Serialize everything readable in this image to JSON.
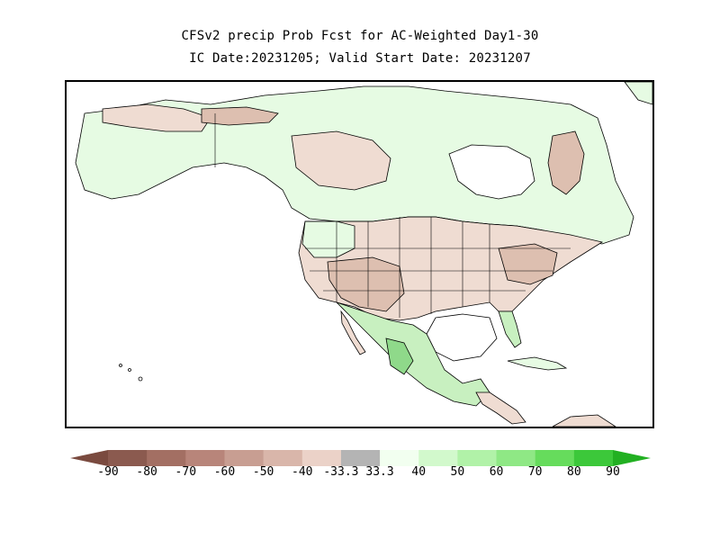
{
  "title": {
    "line1": "CFSv2 precip Prob Fcst for AC-Weighted Day1-30",
    "line2": "IC Date:20231205; Valid Start Date: 20231207"
  },
  "map": {
    "region": "North America",
    "colors": {
      "background": "#ffffff",
      "dry_strong": "#c8a090",
      "dry_moderate": "#ddbfb0",
      "dry_light": "#efdcd2",
      "wet_light": "#e6fbe3",
      "wet_moderate": "#c8f0c0",
      "wet_strong": "#8fd98a",
      "outline": "#000000"
    }
  },
  "legend": {
    "labels": [
      "-90",
      "-80",
      "-70",
      "-60",
      "-50",
      "-40",
      "-33.3",
      "33.3",
      "40",
      "50",
      "60",
      "70",
      "80",
      "90"
    ],
    "bins": [
      {
        "color": "#8b5a4f"
      },
      {
        "color": "#a36f63"
      },
      {
        "color": "#b8857a"
      },
      {
        "color": "#c89e92"
      },
      {
        "color": "#d9b6aa"
      },
      {
        "color": "#ebd2c8"
      },
      {
        "color": "#b4b4b4"
      },
      {
        "color": "#f2fff0"
      },
      {
        "color": "#d2f9cc"
      },
      {
        "color": "#b1f2a8"
      },
      {
        "color": "#8fe885"
      },
      {
        "color": "#66dc5c"
      },
      {
        "color": "#3cc83a"
      }
    ],
    "left_arrow_color": "#7a4a3f",
    "right_arrow_color": "#22b022"
  }
}
